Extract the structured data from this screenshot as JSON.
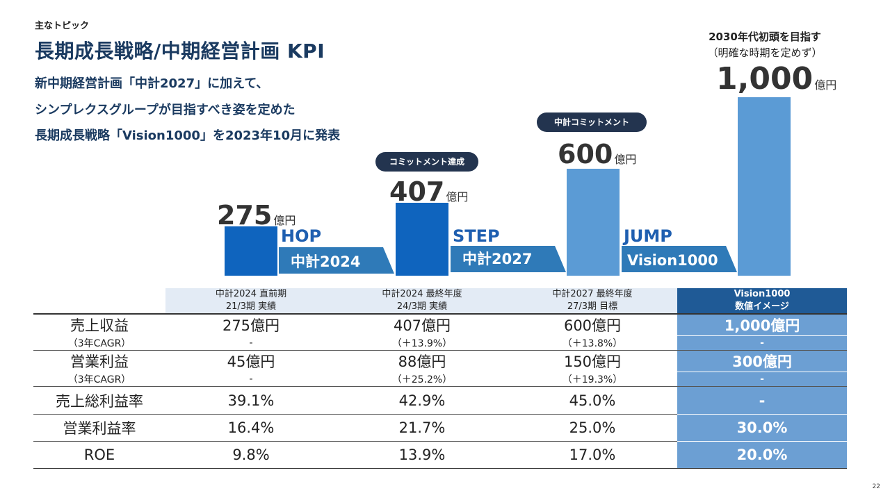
{
  "kicker": "主なトピック",
  "title": "長期成長戦略/中期経営計画 KPI",
  "lead": [
    "新中期経営計画「中計2027」に加えて、",
    "シンプレクスグループが目指すべき姿を定めた",
    "長期成長戦略「Vision1000」を2023年10月に発表"
  ],
  "goal": {
    "headline": "2030年代初頭を目指す",
    "sub": "（明確な時期を定めず）"
  },
  "unit": "億円",
  "bars": [
    {
      "value": "275",
      "num": 275,
      "color": "#0f64be"
    },
    {
      "value": "407",
      "num": 407,
      "color": "#0f64be"
    },
    {
      "value": "600",
      "num": 600,
      "color": "#5b9bd5"
    },
    {
      "value": "1,000",
      "num": 1000,
      "color": "#5b9bd5"
    }
  ],
  "badges": [
    "コミットメント達成",
    "中計コミットメント"
  ],
  "phases": [
    {
      "word": "HOP",
      "arrow": "中計2024"
    },
    {
      "word": "STEP",
      "arrow": "中計2027"
    },
    {
      "word": "JUMP",
      "arrow": "Vision1000"
    }
  ],
  "table": {
    "headers": [
      [
        "中計2024 直前期",
        "21/3期 実績"
      ],
      [
        "中計2024 最終年度",
        "24/3期 実績"
      ],
      [
        "中計2027 最終年度",
        "27/3期 目標"
      ],
      [
        "Vision1000",
        "数値イメージ"
      ]
    ],
    "rows": [
      {
        "label": "売上収益",
        "values": [
          "275億円",
          "407億円",
          "600億円",
          "1,000億円"
        ],
        "sub_label": "（3年CAGR）",
        "sub_values": [
          "-",
          "（＋13.9%）",
          "（＋13.8%）",
          "-"
        ]
      },
      {
        "label": "営業利益",
        "values": [
          "45億円",
          "88億円",
          "150億円",
          "300億円"
        ],
        "sub_label": "（3年CAGR）",
        "sub_values": [
          "-",
          "（＋25.2%）",
          "（＋19.3%）",
          "-"
        ]
      },
      {
        "label": "売上総利益率",
        "values": [
          "39.1%",
          "42.9%",
          "45.0%",
          "-"
        ]
      },
      {
        "label": "営業利益率",
        "values": [
          "16.4%",
          "21.7%",
          "25.0%",
          "30.0%"
        ]
      },
      {
        "label": "ROE",
        "values": [
          "9.8%",
          "13.9%",
          "17.0%",
          "20.0%"
        ]
      }
    ]
  },
  "page_number": "22"
}
